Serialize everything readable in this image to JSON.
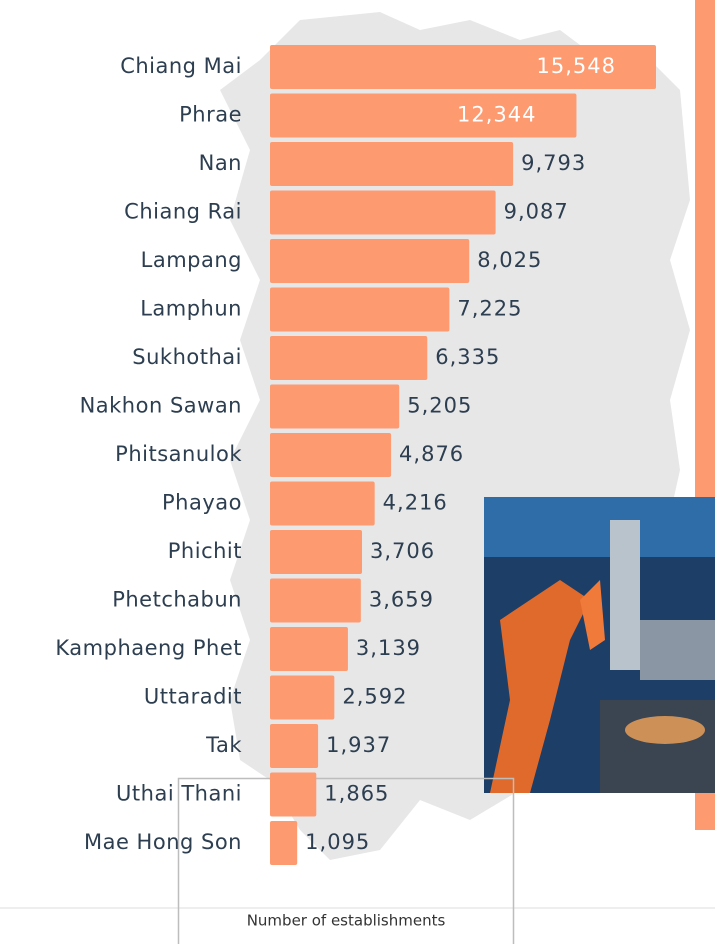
{
  "chart_data": {
    "type": "bar",
    "orientation": "horizontal",
    "categories": [
      "Chiang Mai",
      "Phrae",
      "Nan",
      "Chiang Rai",
      "Lampang",
      "Lamphun",
      "Sukhothai",
      "Nakhon Sawan",
      "Phitsanulok",
      "Phayao",
      "Phichit",
      "Phetchabun",
      "Kamphaeng Phet",
      "Uttaradit",
      "Tak",
      "Uthai Thani",
      "Mae Hong Son"
    ],
    "values": [
      15548,
      12344,
      9793,
      9087,
      8025,
      7225,
      6335,
      5205,
      4876,
      4216,
      3706,
      3659,
      3139,
      2592,
      1937,
      1865,
      1095
    ],
    "value_labels": [
      "15,548",
      "12,344",
      "9,793",
      "9,087",
      "8,025",
      "7,225",
      "6,335",
      "5,205",
      "4,876",
      "4,216",
      "3,706",
      "3,659",
      "3,139",
      "2,592",
      "1,937",
      "1,865",
      "1,095"
    ],
    "color": "#fd9a6f",
    "x_label": "Number of establishments"
  }
}
